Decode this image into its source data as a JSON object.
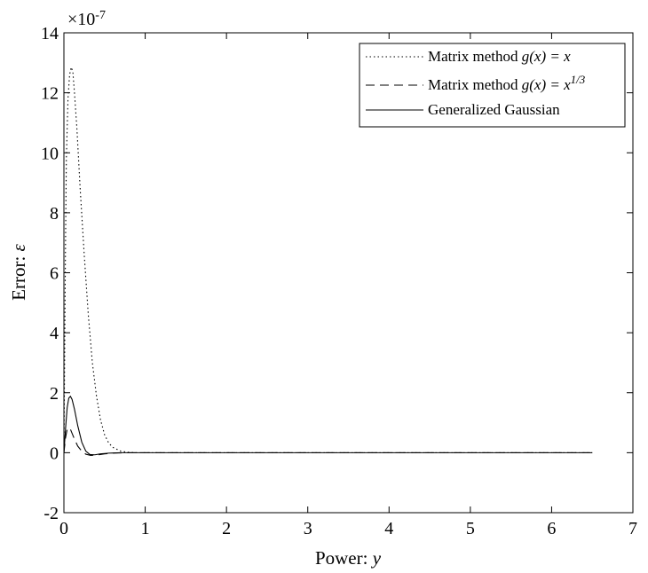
{
  "chart_data": {
    "type": "line",
    "title": "",
    "xlabel": {
      "text": "Power: ",
      "var": "y"
    },
    "ylabel": {
      "text": "Error: ",
      "var": "ε"
    },
    "xlim": [
      0,
      7
    ],
    "ylim": [
      -2,
      14
    ],
    "y_scale_label": {
      "base": "×10",
      "exponent": "-7"
    },
    "x_ticks": [
      0,
      1,
      2,
      3,
      4,
      5,
      6,
      7
    ],
    "y_ticks": [
      -2,
      0,
      2,
      4,
      6,
      8,
      10,
      12,
      14
    ],
    "grid": false,
    "legend_position": "top-right",
    "series": [
      {
        "name": {
          "prefix": "Matrix method ",
          "formula": "g(x) = x",
          "sup": ""
        },
        "line_style": "dotted",
        "color": "#000000",
        "points": [
          [
            0,
            0
          ],
          [
            0.01,
            3.5
          ],
          [
            0.02,
            7.0
          ],
          [
            0.03,
            9.8
          ],
          [
            0.05,
            11.8
          ],
          [
            0.07,
            12.6
          ],
          [
            0.09,
            12.85
          ],
          [
            0.11,
            12.7
          ],
          [
            0.13,
            12.0
          ],
          [
            0.16,
            10.8
          ],
          [
            0.2,
            8.8
          ],
          [
            0.25,
            6.6
          ],
          [
            0.3,
            4.6
          ],
          [
            0.35,
            3.0
          ],
          [
            0.4,
            1.9
          ],
          [
            0.45,
            1.1
          ],
          [
            0.5,
            0.6
          ],
          [
            0.55,
            0.33
          ],
          [
            0.6,
            0.18
          ],
          [
            0.7,
            0.05
          ],
          [
            0.8,
            0.01
          ],
          [
            0.9,
            0
          ],
          [
            1.2,
            0
          ],
          [
            3,
            0
          ],
          [
            5,
            0
          ],
          [
            6.5,
            0
          ]
        ]
      },
      {
        "name": {
          "prefix": "Matrix method ",
          "formula": "g(x) = x",
          "sup": "1/3"
        },
        "line_style": "dashed",
        "color": "#000000",
        "points": [
          [
            0,
            0
          ],
          [
            0.02,
            0.5
          ],
          [
            0.04,
            0.78
          ],
          [
            0.06,
            0.83
          ],
          [
            0.08,
            0.78
          ],
          [
            0.1,
            0.65
          ],
          [
            0.13,
            0.45
          ],
          [
            0.17,
            0.22
          ],
          [
            0.22,
            0.05
          ],
          [
            0.27,
            -0.05
          ],
          [
            0.33,
            -0.09
          ],
          [
            0.4,
            -0.08
          ],
          [
            0.5,
            -0.04
          ],
          [
            0.6,
            -0.015
          ],
          [
            0.8,
            0
          ],
          [
            1.2,
            0
          ],
          [
            3,
            0
          ],
          [
            5,
            0
          ],
          [
            6.5,
            0
          ]
        ]
      },
      {
        "name": {
          "prefix": "Generalized Gaussian",
          "formula": "",
          "sup": ""
        },
        "line_style": "solid",
        "color": "#000000",
        "points": [
          [
            0,
            0
          ],
          [
            0.02,
            0.8
          ],
          [
            0.04,
            1.5
          ],
          [
            0.06,
            1.82
          ],
          [
            0.08,
            1.88
          ],
          [
            0.1,
            1.78
          ],
          [
            0.13,
            1.45
          ],
          [
            0.17,
            0.9
          ],
          [
            0.22,
            0.35
          ],
          [
            0.27,
            0.05
          ],
          [
            0.32,
            -0.06
          ],
          [
            0.38,
            -0.07
          ],
          [
            0.45,
            -0.04
          ],
          [
            0.55,
            -0.015
          ],
          [
            0.7,
            0
          ],
          [
            1.2,
            0
          ],
          [
            3,
            0
          ],
          [
            5,
            0
          ],
          [
            6.5,
            0
          ]
        ]
      }
    ]
  }
}
